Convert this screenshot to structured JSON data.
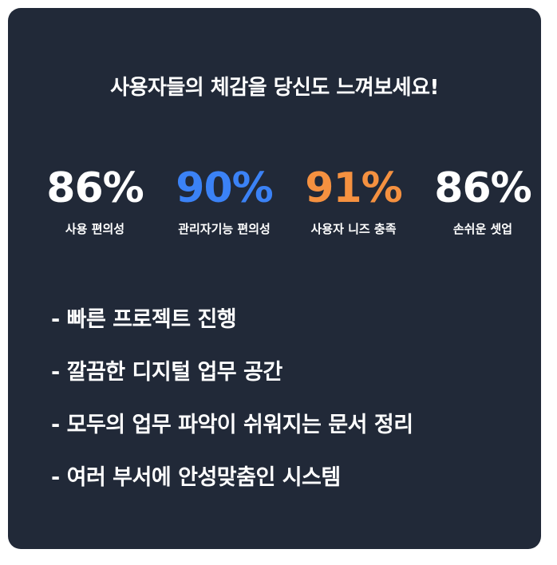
{
  "headline": "사용자들의 체감을 당신도 느껴보세요!",
  "stats": [
    {
      "value": "86%",
      "label": "사용 편의성",
      "color": "#ffffff"
    },
    {
      "value": "90%",
      "label": "관리자기능 편의성",
      "color": "#3b82f6"
    },
    {
      "value": "91%",
      "label": "사용자 니즈 충족",
      "color": "#f59140"
    },
    {
      "value": "86%",
      "label": "손쉬운 셋업",
      "color": "#ffffff"
    }
  ],
  "features": [
    "- 빠른 프로젝트 진행",
    "- 깔끔한 디지털 업무 공간",
    "- 모두의 업무 파악이 쉬워지는 문서 정리",
    "- 여러 부서에 안성맞춤인 시스템"
  ],
  "colors": {
    "card_background": "#212938",
    "text": "#ffffff"
  }
}
